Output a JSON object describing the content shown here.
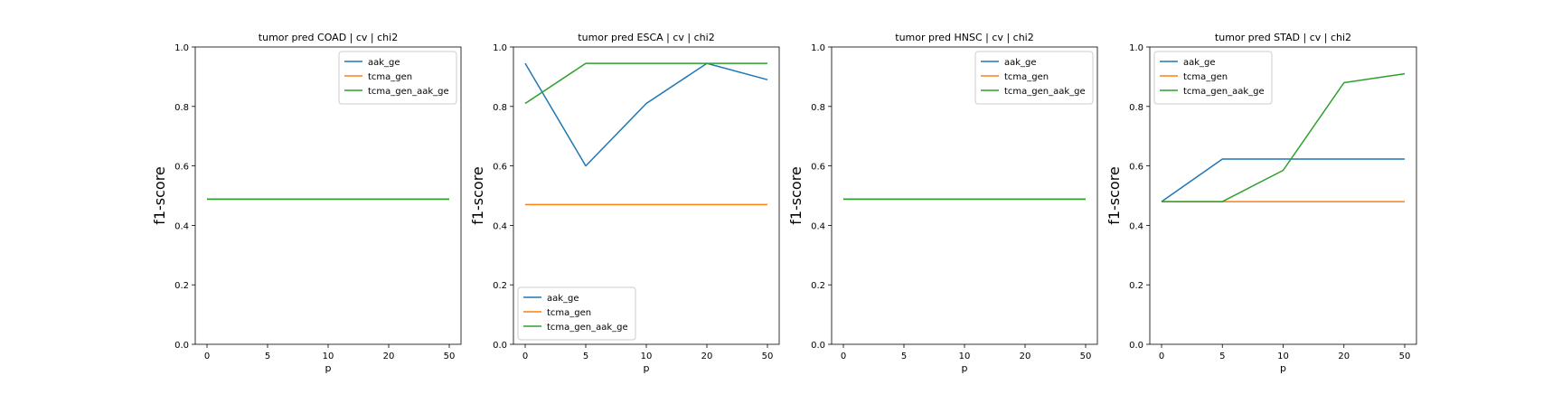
{
  "colors": {
    "aak_ge": "#1f77b4",
    "tcma_gen": "#ff7f0e",
    "tcma_gen_aak_ge": "#2ca02c"
  },
  "chart_data": [
    {
      "type": "line",
      "title": "tumor pred COAD | cv | chi2",
      "xlabel": "p",
      "ylabel": "f1-score",
      "categories": [
        "0",
        "5",
        "10",
        "20",
        "50"
      ],
      "ylim": [
        0,
        1
      ],
      "yticks": [
        "0.0",
        "0.2",
        "0.4",
        "0.6",
        "0.8",
        "1.0"
      ],
      "legend_position": "upper-right",
      "series": [
        {
          "name": "aak_ge",
          "values": [
            0.488,
            0.488,
            0.488,
            0.488,
            0.488
          ]
        },
        {
          "name": "tcma_gen",
          "values": [
            0.488,
            0.488,
            0.488,
            0.488,
            0.488
          ]
        },
        {
          "name": "tcma_gen_aak_ge",
          "values": [
            0.488,
            0.488,
            0.488,
            0.488,
            0.488
          ]
        }
      ]
    },
    {
      "type": "line",
      "title": "tumor pred ESCA | cv | chi2",
      "xlabel": "p",
      "ylabel": "f1-score",
      "categories": [
        "0",
        "5",
        "10",
        "20",
        "50"
      ],
      "ylim": [
        0,
        1
      ],
      "yticks": [
        "0.0",
        "0.2",
        "0.4",
        "0.6",
        "0.8",
        "1.0"
      ],
      "legend_position": "lower-left",
      "series": [
        {
          "name": "aak_ge",
          "values": [
            0.945,
            0.6,
            0.81,
            0.945,
            0.89
          ]
        },
        {
          "name": "tcma_gen",
          "values": [
            0.47,
            0.47,
            0.47,
            0.47,
            0.47
          ]
        },
        {
          "name": "tcma_gen_aak_ge",
          "values": [
            0.81,
            0.945,
            0.945,
            0.945,
            0.945
          ]
        }
      ]
    },
    {
      "type": "line",
      "title": "tumor pred HNSC | cv | chi2",
      "xlabel": "p",
      "ylabel": "f1-score",
      "categories": [
        "0",
        "5",
        "10",
        "20",
        "50"
      ],
      "ylim": [
        0,
        1
      ],
      "yticks": [
        "0.0",
        "0.2",
        "0.4",
        "0.6",
        "0.8",
        "1.0"
      ],
      "legend_position": "upper-right",
      "series": [
        {
          "name": "aak_ge",
          "values": [
            0.488,
            0.488,
            0.488,
            0.488,
            0.488
          ]
        },
        {
          "name": "tcma_gen",
          "values": [
            0.488,
            0.488,
            0.488,
            0.488,
            0.488
          ]
        },
        {
          "name": "tcma_gen_aak_ge",
          "values": [
            0.488,
            0.488,
            0.488,
            0.488,
            0.488
          ]
        }
      ]
    },
    {
      "type": "line",
      "title": "tumor pred STAD | cv | chi2",
      "xlabel": "p",
      "ylabel": "f1-score",
      "categories": [
        "0",
        "5",
        "10",
        "20",
        "50"
      ],
      "ylim": [
        0,
        1
      ],
      "yticks": [
        "0.0",
        "0.2",
        "0.4",
        "0.6",
        "0.8",
        "1.0"
      ],
      "legend_position": "upper-left",
      "series": [
        {
          "name": "aak_ge",
          "values": [
            0.48,
            0.623,
            0.623,
            0.623,
            0.623
          ]
        },
        {
          "name": "tcma_gen",
          "values": [
            0.48,
            0.48,
            0.48,
            0.48,
            0.48
          ]
        },
        {
          "name": "tcma_gen_aak_ge",
          "values": [
            0.48,
            0.48,
            0.585,
            0.88,
            0.91
          ]
        }
      ]
    }
  ]
}
